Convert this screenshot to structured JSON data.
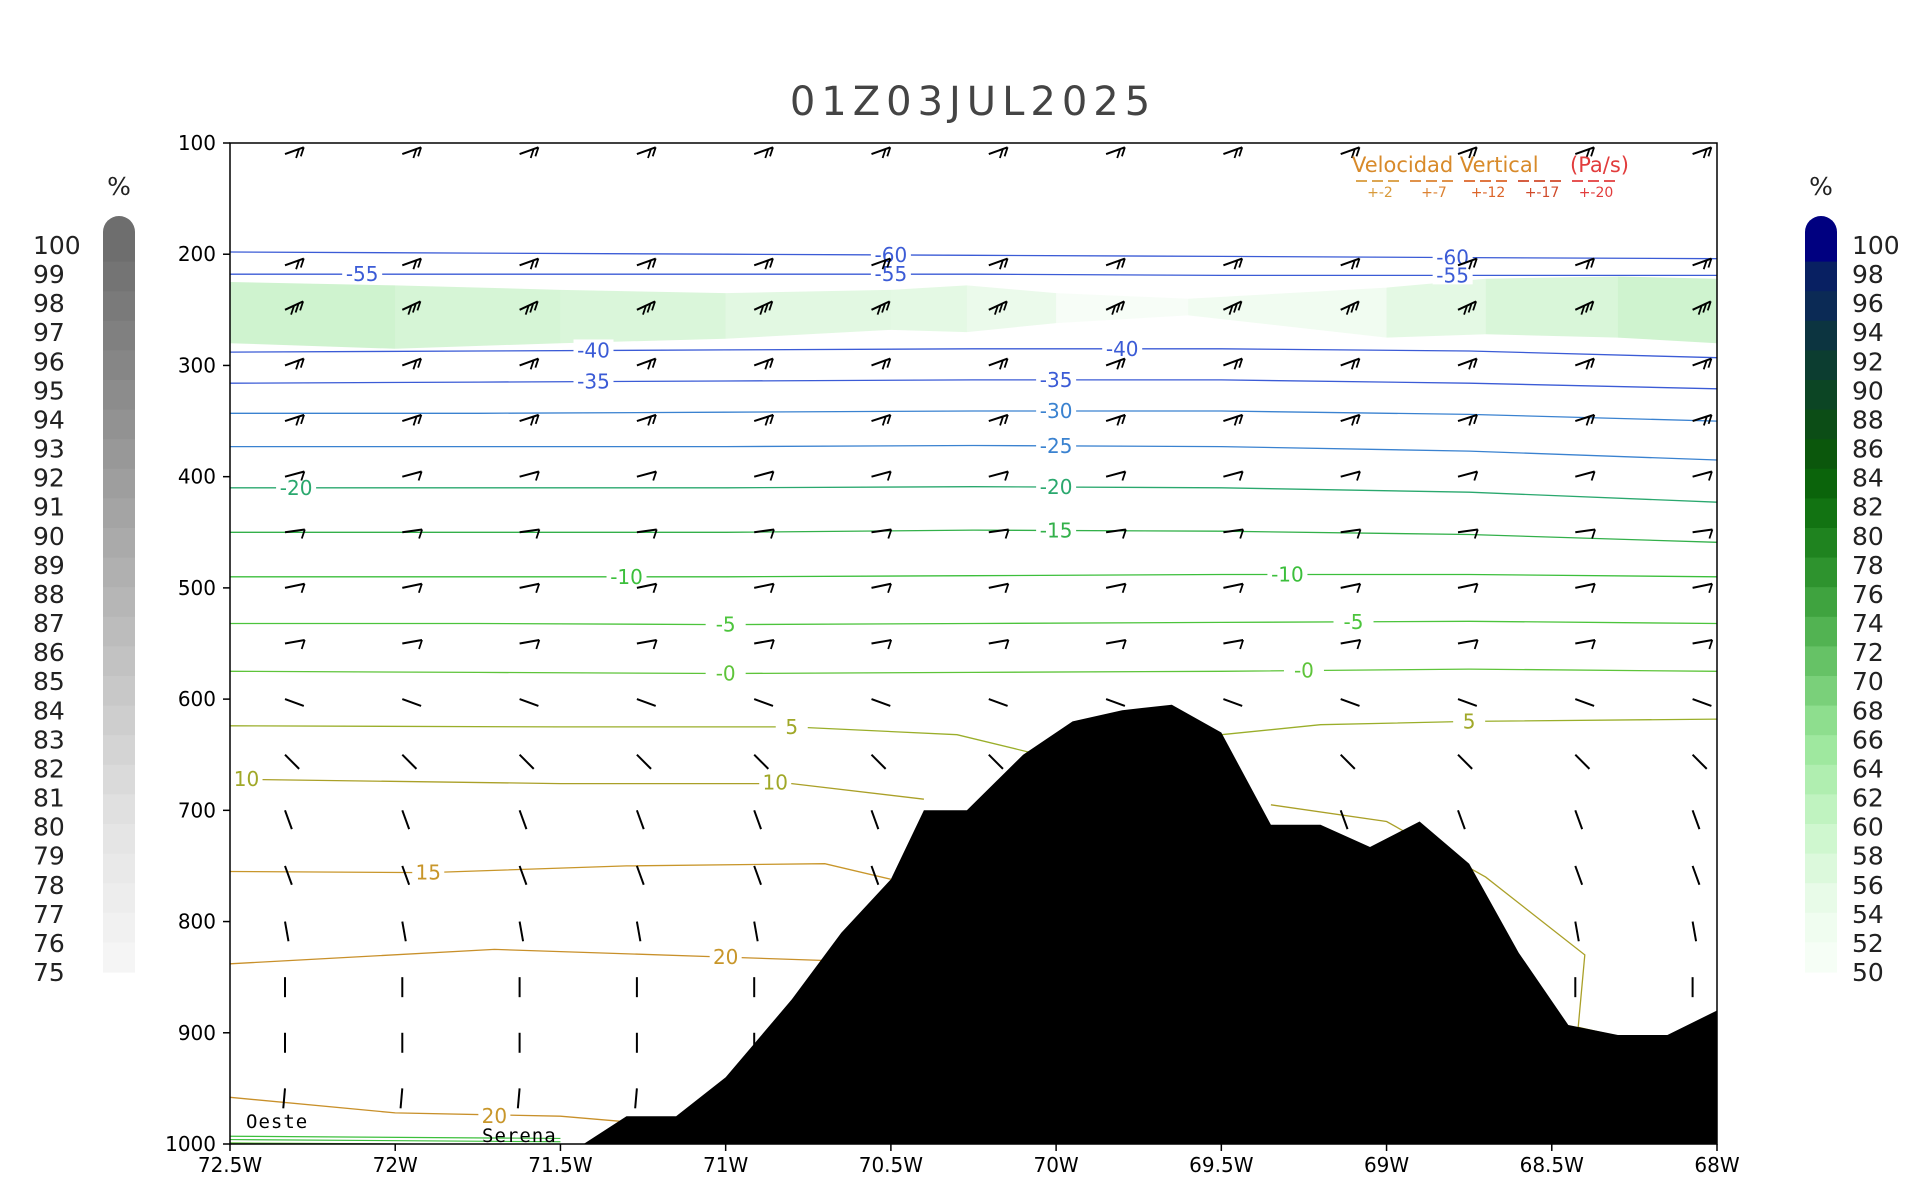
{
  "chart_data": {
    "type": "cross-section",
    "title": "01Z03JUL2025",
    "x_axis": {
      "ticks": [
        "72.5W",
        "72W",
        "71.5W",
        "71W",
        "70.5W",
        "70W",
        "69.5W",
        "69W",
        "68.5W",
        "68W"
      ],
      "range": [
        -72.5,
        -68.0
      ]
    },
    "y_axis": {
      "ticks": [
        "100",
        "200",
        "300",
        "400",
        "500",
        "600",
        "700",
        "800",
        "900",
        "1000"
      ],
      "range_hPa": [
        100,
        1000
      ]
    },
    "left_colorbar": {
      "unit": "%",
      "labels": [
        "100",
        "99",
        "98",
        "97",
        "96",
        "95",
        "94",
        "93",
        "92",
        "91",
        "90",
        "89",
        "88",
        "87",
        "86",
        "85",
        "84",
        "83",
        "82",
        "81",
        "80",
        "79",
        "78",
        "77",
        "76",
        "75"
      ],
      "colors": [
        "#6e6e6e",
        "#747474",
        "#7a7a7a",
        "#808080",
        "#868686",
        "#8c8c8c",
        "#929292",
        "#989898",
        "#9e9e9e",
        "#a4a4a4",
        "#aaaaaa",
        "#b0b0b0",
        "#b6b6b6",
        "#bcbcbc",
        "#c2c2c2",
        "#c8c8c8",
        "#cecece",
        "#d4d4d4",
        "#dadada",
        "#e0e0e0",
        "#e5e5e5",
        "#e9e9e9",
        "#ededed",
        "#f1f1f1",
        "#f5f5f5"
      ]
    },
    "right_colorbar": {
      "unit": "%",
      "labels": [
        "100",
        "98",
        "96",
        "94",
        "92",
        "90",
        "88",
        "86",
        "84",
        "82",
        "80",
        "78",
        "76",
        "74",
        "72",
        "70",
        "68",
        "66",
        "64",
        "62",
        "60",
        "58",
        "56",
        "54",
        "52",
        "50"
      ],
      "colors": [
        "#000080",
        "#082062",
        "#0b2a55",
        "#0c3440",
        "#0c3d30",
        "#0c4524",
        "#0c4d16",
        "#0b570c",
        "#0b640b",
        "#127312",
        "#1f831f",
        "#2e932e",
        "#3fa33f",
        "#52b352",
        "#66c266",
        "#7ad07a",
        "#8ede8e",
        "#9fe89f",
        "#b0eeb0",
        "#c0f3c0",
        "#cff7cf",
        "#dcf9dc",
        "#e8fbe8",
        "#f0fdf0",
        "#f6fef6"
      ]
    },
    "legend": {
      "title": "Velocidad Vertical",
      "unit": "(Pa/s)",
      "entries": [
        {
          "label": "+-2",
          "color": "#d89a3a"
        },
        {
          "label": "+-7",
          "color": "#dc8232"
        },
        {
          "label": "+-12",
          "color": "#dc6428"
        },
        {
          "label": "+-17",
          "color": "#d04a2a"
        },
        {
          "label": "+-20",
          "color": "#e23c3c"
        }
      ]
    },
    "temperature_contours": [
      {
        "value": -60,
        "p": [
          198,
          199,
          200,
          201,
          202,
          203,
          204
        ],
        "labels": [
          {
            "text": "-60",
            "lon": -70.5
          },
          {
            "text": "-60",
            "lon": -68.8
          }
        ],
        "color": "#3b5bd6"
      },
      {
        "value": -55,
        "p": [
          218,
          218,
          218,
          218,
          219,
          219,
          219
        ],
        "labels": [
          {
            "text": "-55",
            "lon": -72.1
          },
          {
            "text": "-55",
            "lon": -70.5
          },
          {
            "text": "-55",
            "lon": -68.8
          }
        ],
        "color": "#3b5bd6"
      },
      {
        "value": -40,
        "p": [
          288,
          287,
          286,
          285,
          285,
          287,
          293
        ],
        "labels": [
          {
            "text": "-40",
            "lon": -71.4
          },
          {
            "text": "-40",
            "lon": -69.8
          }
        ],
        "color": "#3b5bd6"
      },
      {
        "value": -35,
        "p": [
          316,
          315,
          314,
          313,
          313,
          316,
          321
        ],
        "labels": [
          {
            "text": "-35",
            "lon": -71.4
          },
          {
            "text": "-35",
            "lon": -70.0
          }
        ],
        "color": "#3b5bd6"
      },
      {
        "value": -30,
        "p": [
          343,
          343,
          342,
          341,
          341,
          344,
          350
        ],
        "labels": [
          {
            "text": "-30",
            "lon": -70.0
          }
        ],
        "color": "#3a82d0"
      },
      {
        "value": -25,
        "p": [
          373,
          373,
          373,
          372,
          373,
          377,
          385
        ],
        "labels": [
          {
            "text": "-25",
            "lon": -70.0
          }
        ],
        "color": "#3a82d0"
      },
      {
        "value": -20,
        "p": [
          410,
          410,
          410,
          409,
          410,
          414,
          423
        ],
        "labels": [
          {
            "text": "-20",
            "lon": -72.3
          },
          {
            "text": "-20",
            "lon": -70.0
          }
        ],
        "color": "#2aa86e"
      },
      {
        "value": -15,
        "p": [
          450,
          450,
          450,
          448,
          449,
          452,
          459
        ],
        "labels": [
          {
            "text": "-15",
            "lon": -70.0
          }
        ],
        "color": "#33b04a"
      },
      {
        "value": -10,
        "p": [
          490,
          490,
          490,
          489,
          488,
          488,
          490
        ],
        "labels": [
          {
            "text": "-10",
            "lon": -71.3
          },
          {
            "text": "-10",
            "lon": -69.3
          }
        ],
        "color": "#3cbf3c"
      },
      {
        "value": -5,
        "p": [
          532,
          532,
          533,
          532,
          531,
          530,
          532
        ],
        "labels": [
          {
            "text": "-5",
            "lon": -71.0
          },
          {
            "text": "-5",
            "lon": -69.1
          }
        ],
        "color": "#4cc43c"
      },
      {
        "value": 0,
        "p": [
          575,
          576,
          577,
          576,
          575,
          573,
          575
        ],
        "labels": [
          {
            "text": "-0",
            "lon": -71.0
          },
          {
            "text": "-0",
            "lon": -69.25
          }
        ],
        "color": "#5ec43a"
      }
    ],
    "temperature_contour_labels_warm": [
      {
        "text": "5",
        "lon": -70.8,
        "p": 625
      },
      {
        "text": "5",
        "lon": -68.75,
        "p": 620
      },
      {
        "text": "10",
        "lon": -72.45,
        "p": 672
      },
      {
        "text": "10",
        "lon": -70.85,
        "p": 675
      },
      {
        "text": "15",
        "lon": -71.9,
        "p": 756
      },
      {
        "text": "20",
        "lon": -71.0,
        "p": 832
      },
      {
        "text": "20",
        "lon": -71.7,
        "p": 975
      }
    ],
    "terrain_pressure_hPa": [
      {
        "lon": -71.43,
        "p": 1000
      },
      {
        "lon": -71.3,
        "p": 975
      },
      {
        "lon": -71.15,
        "p": 975
      },
      {
        "lon": -71.0,
        "p": 940
      },
      {
        "lon": -70.8,
        "p": 870
      },
      {
        "lon": -70.65,
        "p": 810
      },
      {
        "lon": -70.5,
        "p": 762
      },
      {
        "lon": -70.4,
        "p": 700
      },
      {
        "lon": -70.27,
        "p": 700
      },
      {
        "lon": -70.1,
        "p": 650
      },
      {
        "lon": -69.95,
        "p": 620
      },
      {
        "lon": -69.8,
        "p": 610
      },
      {
        "lon": -69.65,
        "p": 605
      },
      {
        "lon": -69.5,
        "p": 630
      },
      {
        "lon": -69.35,
        "p": 713
      },
      {
        "lon": -69.2,
        "p": 713
      },
      {
        "lon": -69.05,
        "p": 733
      },
      {
        "lon": -68.9,
        "p": 710
      },
      {
        "lon": -68.75,
        "p": 748
      },
      {
        "lon": -68.6,
        "p": 828
      },
      {
        "lon": -68.45,
        "p": 893
      },
      {
        "lon": -68.3,
        "p": 902
      },
      {
        "lon": -68.15,
        "p": 902
      },
      {
        "lon": -68.0,
        "p": 880
      }
    ],
    "humidity_shading": "light green band around 210-280 hPa",
    "place_labels": [
      "Oeste",
      "Serena"
    ]
  }
}
